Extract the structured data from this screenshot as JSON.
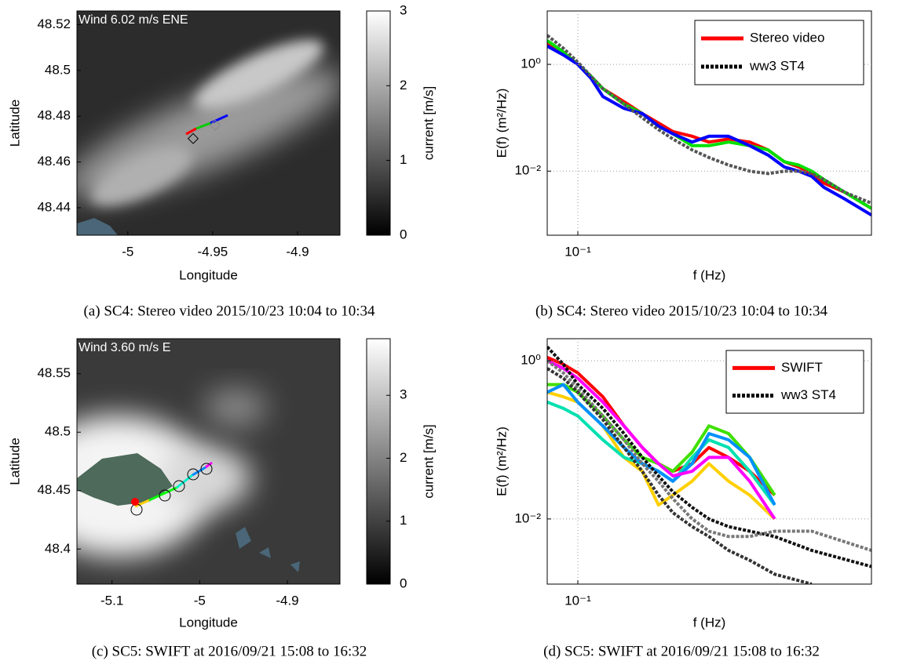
{
  "chart_data": [
    {
      "type": "map",
      "annotation": "Wind 6.02 m/s ENE",
      "xlabel": "Longitude",
      "ylabel": "Latitude",
      "xlim": [
        -5.03,
        -4.875
      ],
      "xticks": [
        -5,
        -4.95,
        -4.9
      ],
      "ylim": [
        48.428,
        48.526
      ],
      "yticks": [
        48.44,
        48.46,
        48.48,
        48.5,
        48.52
      ],
      "colorbar": {
        "label": "current [m/s]",
        "lim": [
          0,
          3
        ],
        "ticks": [
          0,
          1,
          2,
          3
        ]
      },
      "caption": "(a)  SC4: Stereo video 2015/10/23 10:04 to 10:34"
    },
    {
      "type": "line",
      "log_scale": true,
      "grid": true,
      "legend": "upper right",
      "xlabel": "f (Hz)",
      "ylabel": "E(f) (m²/Hz)",
      "xlim": [
        0.08,
        0.85
      ],
      "xticks": [
        {
          "value": 0.1,
          "label": "10⁻¹"
        }
      ],
      "ylim": [
        0.00063,
        10
      ],
      "yticks": [
        {
          "value": 0.01,
          "label": "10⁻²"
        },
        {
          "value": 1,
          "label": "10⁰"
        }
      ],
      "x": [
        0.08,
        0.09,
        0.1,
        0.11,
        0.12,
        0.14,
        0.16,
        0.18,
        0.2,
        0.23,
        0.26,
        0.3,
        0.35,
        0.4,
        0.45,
        0.5,
        0.55,
        0.6,
        0.7,
        0.85
      ],
      "series": [
        {
          "name": "Stereo video",
          "color": "#ff0000",
          "values": [
            2.5,
            1.6,
            1.0,
            0.6,
            0.35,
            0.2,
            0.12,
            0.08,
            0.055,
            0.045,
            0.035,
            0.04,
            0.035,
            0.025,
            0.015,
            0.012,
            0.009,
            0.006,
            0.004,
            0.002
          ]
        },
        {
          "color": "#00e000",
          "values": [
            2.8,
            1.7,
            1.0,
            0.6,
            0.35,
            0.18,
            0.12,
            0.07,
            0.05,
            0.03,
            0.03,
            0.035,
            0.03,
            0.025,
            0.015,
            0.013,
            0.01,
            0.007,
            0.004,
            0.002
          ]
        },
        {
          "color": "#0000ff",
          "values": [
            2.2,
            1.5,
            1.0,
            0.55,
            0.25,
            0.15,
            0.12,
            0.07,
            0.05,
            0.035,
            0.045,
            0.045,
            0.03,
            0.02,
            0.012,
            0.01,
            0.008,
            0.005,
            0.003,
            0.0015
          ]
        },
        {
          "name": "ww3 ST4",
          "color": "#555555",
          "dashed": true,
          "values": [
            3.5,
            2.0,
            1.1,
            0.6,
            0.35,
            0.18,
            0.1,
            0.06,
            0.04,
            0.025,
            0.018,
            0.013,
            0.01,
            0.009,
            0.01,
            0.01,
            0.009,
            0.007,
            0.004,
            0.0025
          ]
        }
      ],
      "caption": "(b)  SC4: Stereo video 2015/10/23 10:04 to 10:34"
    },
    {
      "type": "map",
      "annotation": "Wind 3.60 m/s E",
      "xlabel": "Longitude",
      "ylabel": "Latitude",
      "xlim": [
        -5.14,
        -4.84
      ],
      "xticks": [
        -5.1,
        -5,
        -4.9
      ],
      "ylim": [
        48.37,
        48.58
      ],
      "yticks": [
        48.4,
        48.45,
        48.5,
        48.55
      ],
      "colorbar": {
        "label": "current [m/s]",
        "lim": [
          0,
          3.9
        ],
        "ticks": [
          0,
          1,
          2,
          3
        ]
      },
      "caption": "(c)  SC5: SWIFT at 2016/09/21 15:08 to 16:32"
    },
    {
      "type": "line",
      "log_scale": true,
      "grid": true,
      "legend": "upper right",
      "xlabel": "f (Hz)",
      "ylabel": "E(f) (m²/Hz)",
      "xlim": [
        0.08,
        0.85
      ],
      "xticks": [
        {
          "value": 0.1,
          "label": "10⁻¹"
        }
      ],
      "ylim": [
        0.0015,
        1.9
      ],
      "yticks": [
        {
          "value": 0.01,
          "label": "10⁻²"
        },
        {
          "value": 1,
          "label": "10⁰"
        }
      ],
      "x": [
        0.08,
        0.09,
        0.1,
        0.12,
        0.14,
        0.16,
        0.18,
        0.2,
        0.23,
        0.26,
        0.3,
        0.35,
        0.42,
        0.55,
        0.85
      ],
      "series": [
        {
          "name": "SWIFT",
          "color": "#ff0000",
          "values": [
            1.1,
            0.9,
            0.7,
            0.35,
            0.15,
            0.08,
            0.05,
            0.04,
            0.05,
            0.08,
            0.06,
            0.04,
            0.02,
            null,
            null
          ]
        },
        {
          "color": "#ffd000",
          "values": [
            0.4,
            0.35,
            0.3,
            0.15,
            0.06,
            0.04,
            0.015,
            0.02,
            0.03,
            0.05,
            0.03,
            0.02,
            0.01,
            null,
            null
          ]
        },
        {
          "color": "#40e000",
          "values": [
            0.5,
            0.5,
            0.4,
            0.2,
            0.1,
            0.06,
            0.05,
            0.04,
            0.07,
            0.15,
            0.12,
            0.06,
            0.02,
            null,
            null
          ]
        },
        {
          "color": "#00e0b0",
          "values": [
            0.3,
            0.25,
            0.2,
            0.1,
            0.06,
            0.05,
            0.04,
            0.03,
            0.06,
            0.1,
            0.08,
            0.04,
            0.015,
            null,
            null
          ]
        },
        {
          "color": "#0090ff",
          "values": [
            0.4,
            0.5,
            0.3,
            0.15,
            0.08,
            0.05,
            0.04,
            0.03,
            0.05,
            0.12,
            0.1,
            0.06,
            0.015,
            null,
            null
          ]
        },
        {
          "color": "#ff00ff",
          "values": [
            1.0,
            0.8,
            0.6,
            0.3,
            0.15,
            0.08,
            0.05,
            0.035,
            0.04,
            0.06,
            0.06,
            0.03,
            0.01,
            null,
            null
          ]
        },
        {
          "name": "ww3 ST4",
          "color": "#111111",
          "dashed": true,
          "values": [
            1.5,
            0.9,
            0.5,
            0.25,
            0.12,
            0.06,
            0.035,
            0.022,
            0.014,
            0.01,
            0.008,
            0.007,
            0.006,
            0.004,
            0.0025
          ]
        },
        {
          "color": "#777777",
          "dashed": true,
          "values": [
            1.0,
            0.7,
            0.45,
            0.2,
            0.1,
            0.05,
            0.03,
            0.018,
            0.01,
            0.007,
            0.006,
            0.006,
            0.007,
            0.007,
            0.004
          ]
        },
        {
          "color": "#333333",
          "dashed": true,
          "values": [
            0.8,
            0.6,
            0.4,
            0.18,
            0.08,
            0.04,
            0.02,
            0.012,
            0.008,
            0.006,
            0.004,
            0.003,
            0.002,
            0.0015,
            null
          ]
        }
      ],
      "caption": "(d)  SC5: SWIFT at 2016/09/21 15:08 to 16:32"
    }
  ]
}
